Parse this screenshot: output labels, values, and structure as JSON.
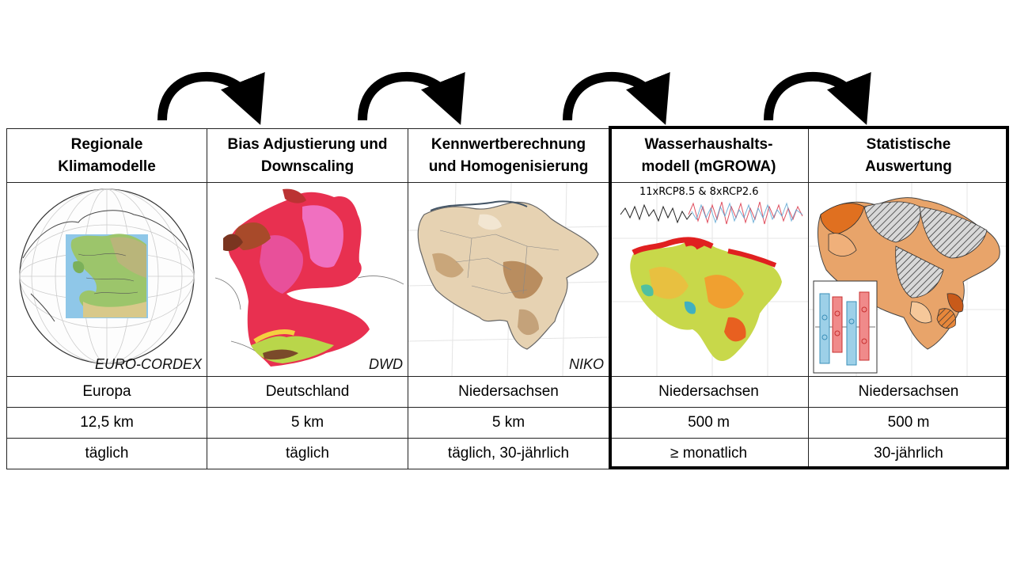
{
  "columns": [
    {
      "title_line1": "Regionale",
      "title_line2": "Klimamodelle",
      "credit": "EURO-CORDEX",
      "region": "Europa",
      "resolution": "12,5 km",
      "time_step": "täglich"
    },
    {
      "title_line1": "Bias Adjustierung und",
      "title_line2": "Downscaling",
      "credit": "DWD",
      "region": "Deutschland",
      "resolution": "5 km",
      "time_step": "täglich"
    },
    {
      "title_line1": "Kennwertberechnung",
      "title_line2": "und Homogenisierung",
      "credit": "NIKO",
      "region": "Niedersachsen",
      "resolution": "5 km",
      "time_step": "täglich, 30-jährlich"
    },
    {
      "title_line1": "Wasserhaushalts-",
      "title_line2": "modell (mGROWA)",
      "scenario_label": "11xRCP8.5 & 8xRCP2.6",
      "region": "Niedersachsen",
      "resolution": "500 m",
      "time_step": "≥ monatlich"
    },
    {
      "title_line1": "Statistische",
      "title_line2": "Auswertung",
      "region": "Niedersachsen",
      "resolution": "500 m",
      "time_step": "30-jährlich"
    }
  ],
  "colors": {
    "arrow": "#000000",
    "border": "#222222",
    "highlight_border": "#000000"
  }
}
